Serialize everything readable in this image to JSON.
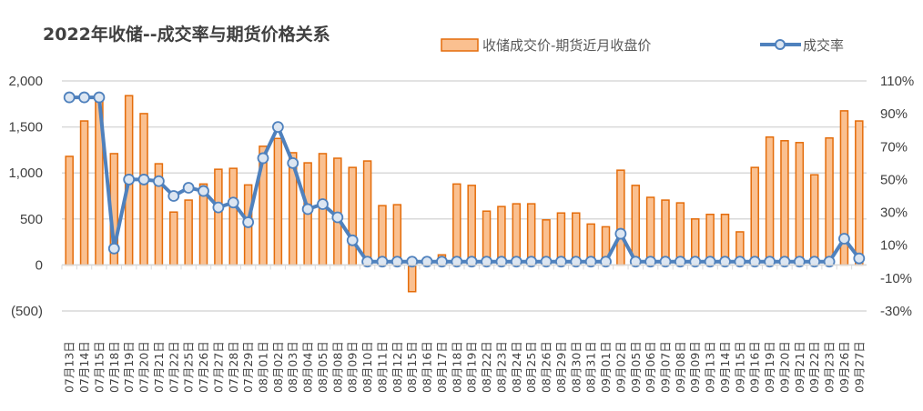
{
  "chart_data": {
    "type": "bar+line",
    "title": "2022年收储--成交率与期货价格关系",
    "categories": [
      "07月13日",
      "07月14日",
      "07月15日",
      "07月18日",
      "07月19日",
      "07月20日",
      "07月21日",
      "07月22日",
      "07月25日",
      "07月26日",
      "07月27日",
      "07月28日",
      "07月29日",
      "08月01日",
      "08月02日",
      "08月03日",
      "08月04日",
      "08月05日",
      "08月08日",
      "08月09日",
      "08月10日",
      "08月11日",
      "08月12日",
      "08月15日",
      "08月16日",
      "08月17日",
      "08月18日",
      "08月19日",
      "08月22日",
      "08月23日",
      "08月24日",
      "08月25日",
      "08月26日",
      "08月29日",
      "08月30日",
      "08月31日",
      "09月01日",
      "09月02日",
      "09月05日",
      "09月06日",
      "09月07日",
      "09月08日",
      "09月09日",
      "09月13日",
      "09月14日",
      "09月15日",
      "09月16日",
      "09月19日",
      "09月20日",
      "09月21日",
      "09月22日",
      "09月23日",
      "09月26日",
      "09月27日"
    ],
    "series": [
      {
        "name": "收储成交价-期货近月收盘价",
        "type": "bar",
        "axis": "left",
        "color": "#FAC090",
        "border": "#E46C0A",
        "values": [
          1180,
          1565,
          1800,
          1210,
          1840,
          1645,
          1100,
          575,
          705,
          880,
          1040,
          1050,
          870,
          1290,
          1375,
          1220,
          1110,
          1210,
          1160,
          1060,
          1130,
          645,
          655,
          -290,
          0,
          110,
          880,
          865,
          585,
          635,
          665,
          665,
          490,
          565,
          565,
          445,
          415,
          1030,
          865,
          735,
          705,
          675,
          500,
          550,
          550,
          360,
          1060,
          1390,
          1350,
          1330,
          980,
          1380,
          1675,
          1565
        ]
      },
      {
        "name": "成交率",
        "type": "line",
        "axis": "right",
        "color": "#4F81BD",
        "marker_fill": "#DCE6F2",
        "values": [
          100,
          100,
          100,
          8,
          50,
          50,
          49,
          40,
          45,
          43,
          33,
          36,
          24,
          63,
          82,
          60,
          32,
          35,
          27,
          13,
          0,
          0,
          0,
          0,
          0,
          0,
          0,
          0,
          0,
          0,
          0,
          0,
          0,
          0,
          0,
          0,
          0,
          17,
          0,
          0,
          0,
          0,
          0,
          0,
          0,
          0,
          0,
          0,
          0,
          0,
          0,
          0,
          14,
          2
        ]
      }
    ],
    "left_axis": {
      "ylim": [
        -500,
        2000
      ],
      "ticks": [
        "(500)",
        "0",
        "500",
        "1,000",
        "1,500",
        "2,000"
      ],
      "tick_values": [
        -500,
        0,
        500,
        1000,
        1500,
        2000
      ],
      "negative_color": "#FF0000"
    },
    "right_axis": {
      "ylim": [
        -30,
        110
      ],
      "ticks": [
        "-30%",
        "-10%",
        "10%",
        "30%",
        "50%",
        "70%",
        "90%",
        "110%"
      ],
      "tick_values": [
        -30,
        -10,
        10,
        30,
        50,
        70,
        90,
        110
      ]
    },
    "grid": true,
    "legend": "top"
  }
}
